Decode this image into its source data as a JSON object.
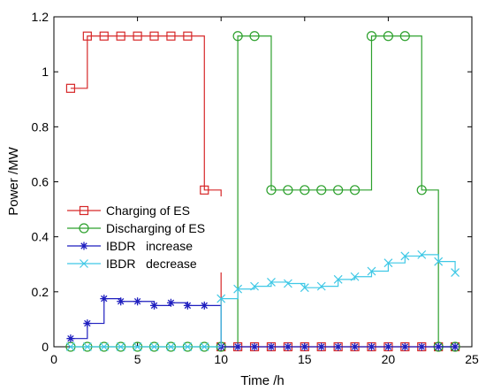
{
  "chart_data": {
    "type": "line",
    "step": true,
    "xlabel": "Time /h",
    "ylabel": "Power /MW",
    "xlim": [
      0,
      25
    ],
    "ylim": [
      0,
      1.2
    ],
    "xticks": [
      "0",
      "5",
      "10",
      "15",
      "20",
      "25"
    ],
    "yticks": [
      "0",
      "0.2",
      "0.4",
      "0.6",
      "0.8",
      "1",
      "1.2"
    ],
    "grid": false,
    "legend_position": "center-left",
    "x": [
      1,
      2,
      3,
      4,
      5,
      6,
      7,
      8,
      9,
      10,
      11,
      12,
      13,
      14,
      15,
      16,
      17,
      18,
      19,
      20,
      21,
      22,
      23,
      24
    ],
    "series": [
      {
        "name": "Charging of ES",
        "color": "#d62728",
        "marker": "square",
        "values": [
          0.94,
          1.13,
          1.13,
          1.13,
          1.13,
          1.13,
          1.13,
          1.13,
          0.57,
          0,
          0,
          0,
          0,
          0,
          0,
          0,
          0,
          0,
          0,
          0,
          0,
          0,
          0,
          0
        ]
      },
      {
        "name": "Discharging of ES",
        "color": "#2ca02c",
        "marker": "circle",
        "values": [
          0,
          0,
          0,
          0,
          0,
          0,
          0,
          0,
          0,
          0,
          1.13,
          1.13,
          0.57,
          0.57,
          0.57,
          0.57,
          0.57,
          0.57,
          1.13,
          1.13,
          1.13,
          0.57,
          0,
          0
        ]
      },
      {
        "name": "IBDR   increase",
        "color": "#1f1fbf",
        "marker": "star",
        "values": [
          0.03,
          0.085,
          0.175,
          0.165,
          0.165,
          0.15,
          0.16,
          0.15,
          0.15,
          0,
          0,
          0,
          0,
          0,
          0,
          0,
          0,
          0,
          0,
          0,
          0,
          0,
          0,
          0
        ]
      },
      {
        "name": "IBDR   decrease",
        "color": "#3fc8e6",
        "marker": "x",
        "values": [
          0,
          0,
          0,
          0,
          0,
          0,
          0,
          0,
          0,
          0.175,
          0.21,
          0.22,
          0.235,
          0.23,
          0.215,
          0.22,
          0.245,
          0.255,
          0.275,
          0.305,
          0.33,
          0.335,
          0.31,
          0.27
        ]
      }
    ]
  }
}
